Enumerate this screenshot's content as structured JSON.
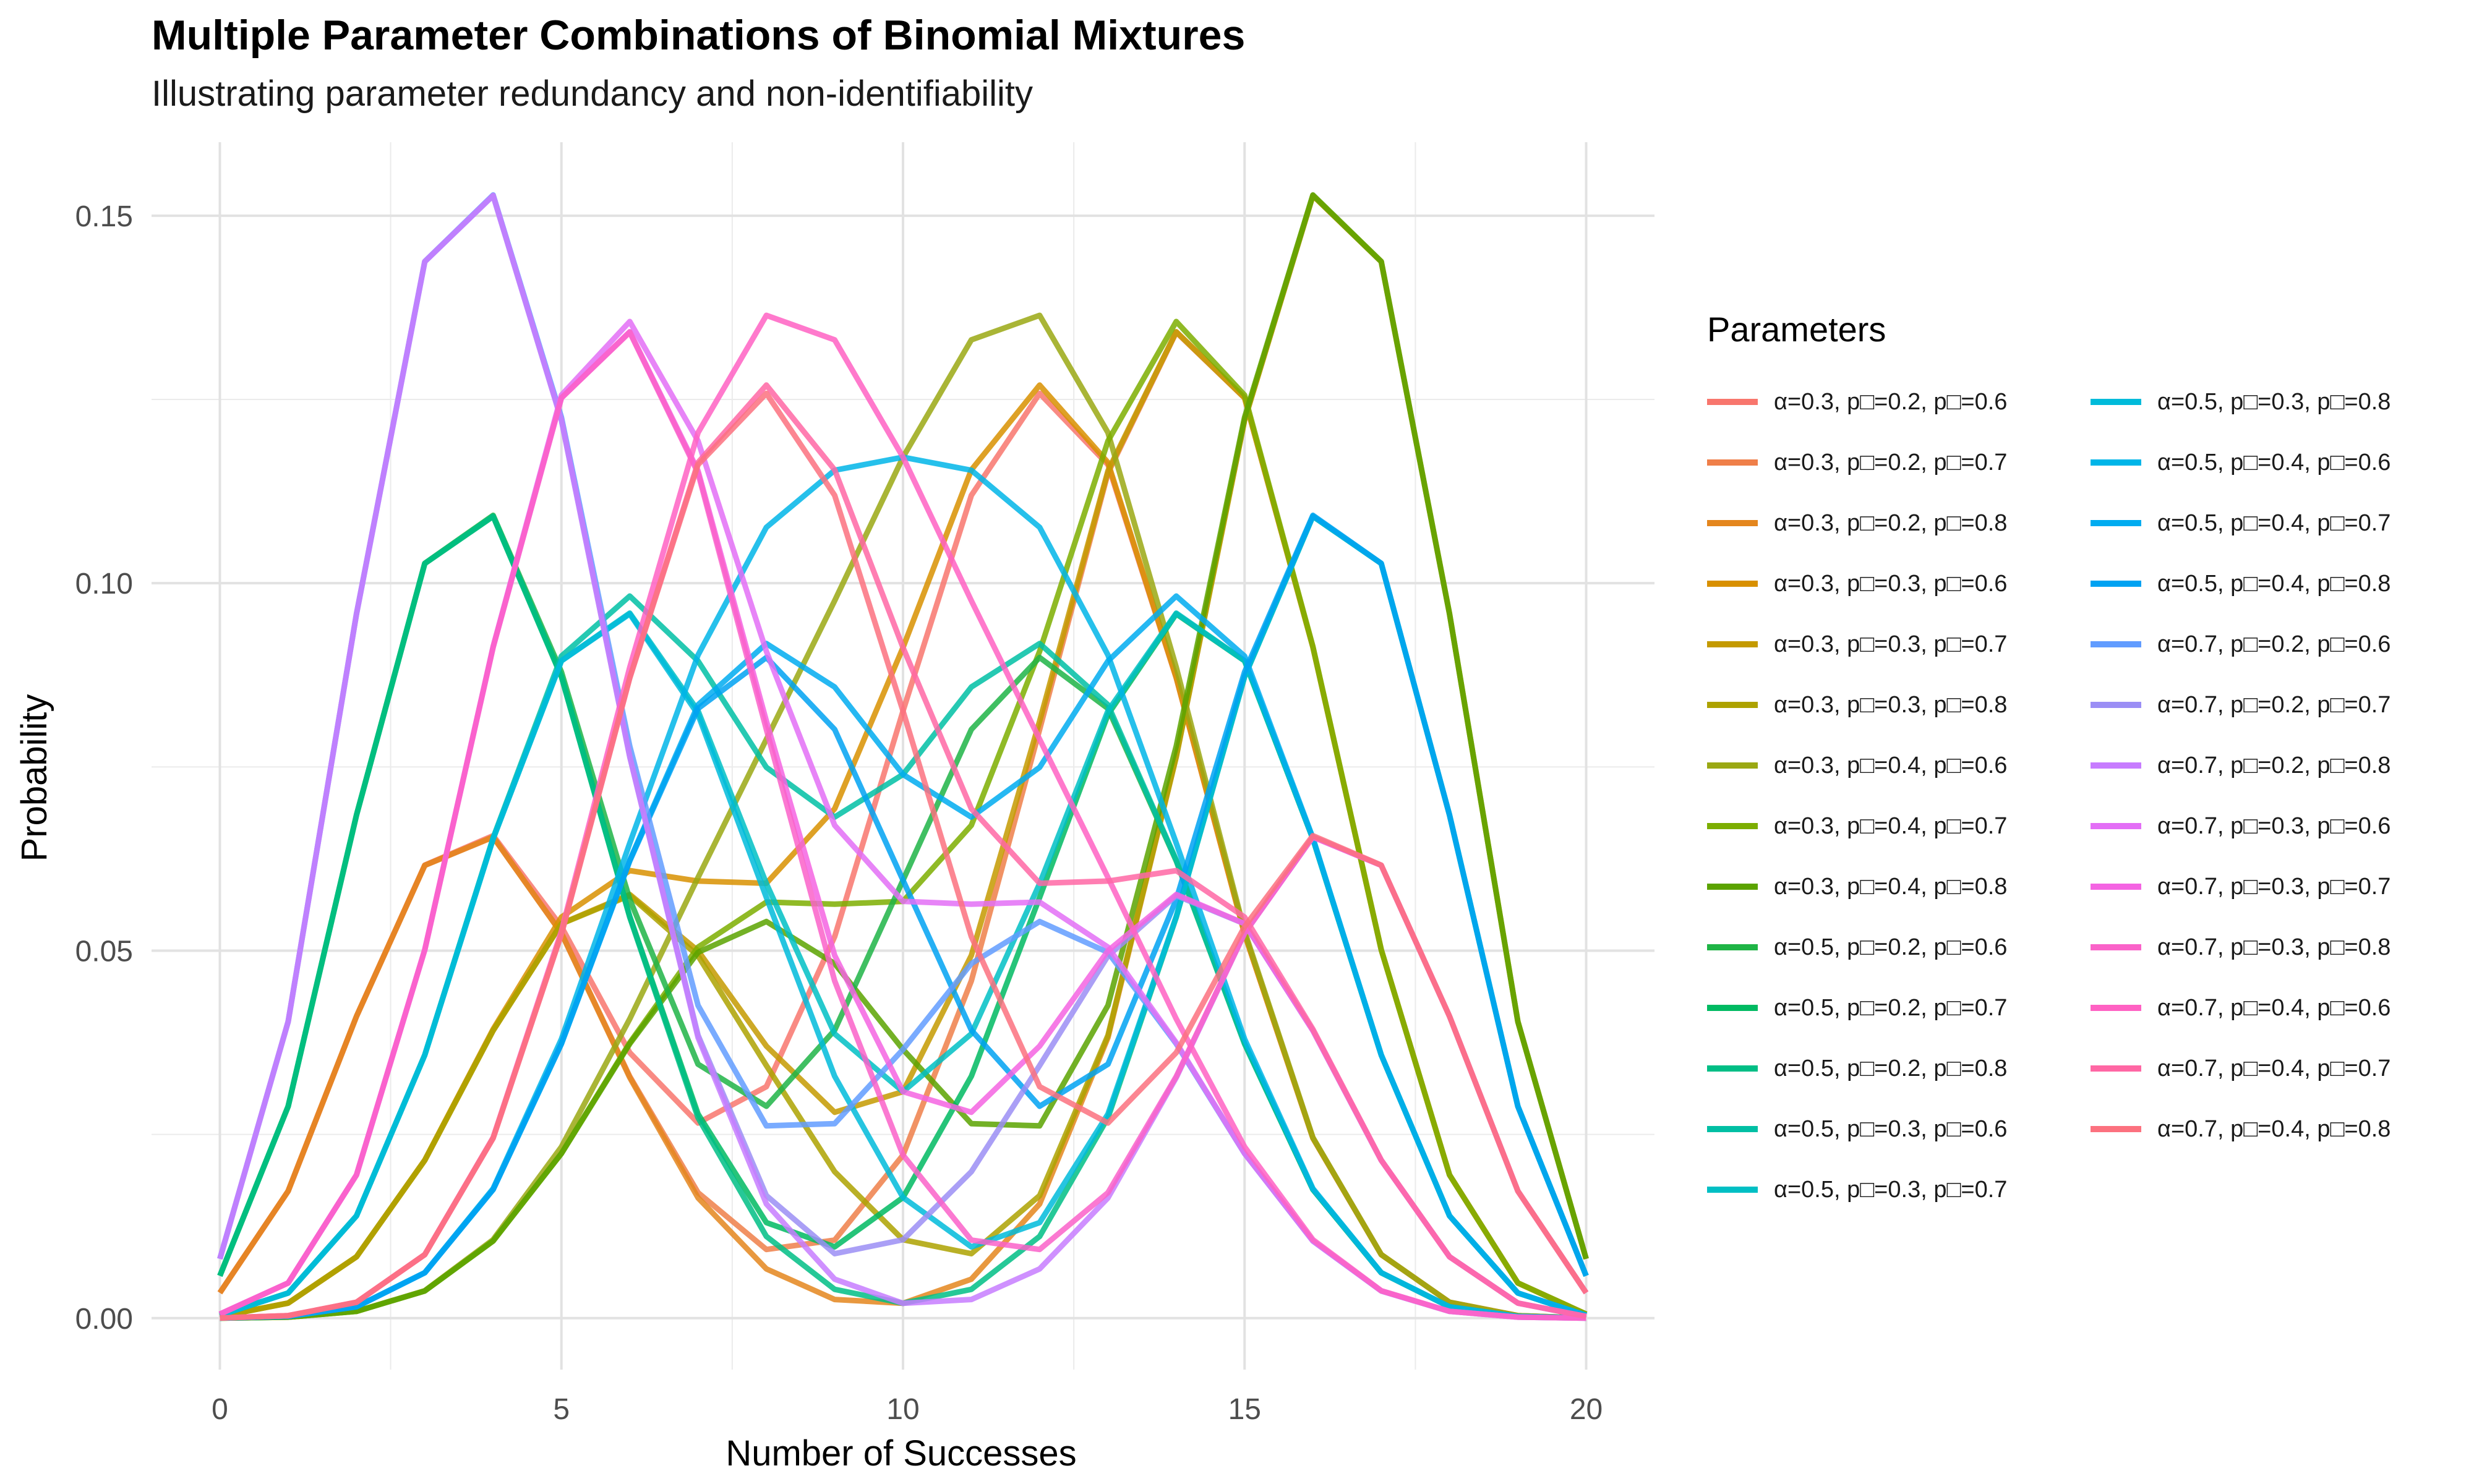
{
  "chart_data": {
    "type": "line",
    "title": "Multiple Parameter Combinations of Binomial Mixtures",
    "subtitle": "Illustrating parameter redundancy and non-identifiability",
    "xlabel": "Number of Successes",
    "ylabel": "Probability",
    "xlim": [
      -1,
      21
    ],
    "ylim": [
      -0.007,
      0.16
    ],
    "xticks": [
      0,
      5,
      10,
      15,
      20
    ],
    "yticks": [
      0.0,
      0.05,
      0.1,
      0.15
    ],
    "ytick_labels": [
      "0.00",
      "0.05",
      "0.10",
      "0.15"
    ],
    "grid": true,
    "legend_title": "Parameters",
    "legend_position": "right",
    "n": 20,
    "x": [
      0,
      1,
      2,
      3,
      4,
      5,
      6,
      7,
      8,
      9,
      10,
      11,
      12,
      13,
      14,
      15,
      16,
      17,
      18,
      19,
      20
    ],
    "series": [
      {
        "name": "α=0.3, p□=0.2, p□=0.6",
        "color": "#F8766D",
        "alpha": 0.3,
        "p1": 0.2,
        "p2": 0.6
      },
      {
        "name": "α=0.3, p□=0.2, p□=0.7",
        "color": "#EF7F49",
        "alpha": 0.3,
        "p1": 0.2,
        "p2": 0.7
      },
      {
        "name": "α=0.3, p□=0.2, p□=0.8",
        "color": "#E4861D",
        "alpha": 0.3,
        "p1": 0.2,
        "p2": 0.8
      },
      {
        "name": "α=0.3, p□=0.3, p□=0.6",
        "color": "#D89000",
        "alpha": 0.3,
        "p1": 0.3,
        "p2": 0.6
      },
      {
        "name": "α=0.3, p□=0.3, p□=0.7",
        "color": "#C49A00",
        "alpha": 0.3,
        "p1": 0.3,
        "p2": 0.7
      },
      {
        "name": "α=0.3, p□=0.3, p□=0.8",
        "color": "#ADA200",
        "alpha": 0.3,
        "p1": 0.3,
        "p2": 0.8
      },
      {
        "name": "α=0.3, p□=0.4, p□=0.6",
        "color": "#9AA813",
        "alpha": 0.3,
        "p1": 0.4,
        "p2": 0.6
      },
      {
        "name": "α=0.3, p□=0.4, p□=0.7",
        "color": "#7CAE00",
        "alpha": 0.3,
        "p1": 0.4,
        "p2": 0.7
      },
      {
        "name": "α=0.3, p□=0.4, p□=0.8",
        "color": "#5BA300",
        "alpha": 0.3,
        "p1": 0.4,
        "p2": 0.8
      },
      {
        "name": "α=0.5, p□=0.2, p□=0.6",
        "color": "#1FB446",
        "alpha": 0.5,
        "p1": 0.2,
        "p2": 0.6
      },
      {
        "name": "α=0.5, p□=0.2, p□=0.7",
        "color": "#00BA62",
        "alpha": 0.5,
        "p1": 0.2,
        "p2": 0.7
      },
      {
        "name": "α=0.5, p□=0.2, p□=0.8",
        "color": "#00BE85",
        "alpha": 0.5,
        "p1": 0.2,
        "p2": 0.8
      },
      {
        "name": "α=0.5, p□=0.3, p□=0.6",
        "color": "#00BFA4",
        "alpha": 0.5,
        "p1": 0.3,
        "p2": 0.6
      },
      {
        "name": "α=0.5, p□=0.3, p□=0.7",
        "color": "#00BFC4",
        "alpha": 0.5,
        "p1": 0.3,
        "p2": 0.7
      },
      {
        "name": "α=0.5, p□=0.3, p□=0.8",
        "color": "#00BBDA",
        "alpha": 0.5,
        "p1": 0.3,
        "p2": 0.8
      },
      {
        "name": "α=0.5, p□=0.4, p□=0.6",
        "color": "#00B5E8",
        "alpha": 0.5,
        "p1": 0.4,
        "p2": 0.6
      },
      {
        "name": "α=0.5, p□=0.4, p□=0.7",
        "color": "#00ACF0",
        "alpha": 0.5,
        "p1": 0.4,
        "p2": 0.7
      },
      {
        "name": "α=0.5, p□=0.4, p□=0.8",
        "color": "#00A2F2",
        "alpha": 0.5,
        "p1": 0.4,
        "p2": 0.8
      },
      {
        "name": "α=0.7, p□=0.2, p□=0.6",
        "color": "#619CFF",
        "alpha": 0.7,
        "p1": 0.2,
        "p2": 0.6
      },
      {
        "name": "α=0.7, p□=0.2, p□=0.7",
        "color": "#9B8EF5",
        "alpha": 0.7,
        "p1": 0.2,
        "p2": 0.7
      },
      {
        "name": "α=0.7, p□=0.2, p□=0.8",
        "color": "#C77CFF",
        "alpha": 0.7,
        "p1": 0.2,
        "p2": 0.8
      },
      {
        "name": "α=0.7, p□=0.3, p□=0.6",
        "color": "#E36EF6",
        "alpha": 0.7,
        "p1": 0.3,
        "p2": 0.6
      },
      {
        "name": "α=0.7, p□=0.3, p□=0.7",
        "color": "#F464E2",
        "alpha": 0.7,
        "p1": 0.3,
        "p2": 0.7
      },
      {
        "name": "α=0.7, p□=0.3, p□=0.8",
        "color": "#FA62C9",
        "alpha": 0.7,
        "p1": 0.3,
        "p2": 0.8
      },
      {
        "name": "α=0.7, p□=0.4, p□=0.6",
        "color": "#FF61C3",
        "alpha": 0.7,
        "p1": 0.4,
        "p2": 0.6
      },
      {
        "name": "α=0.7, p□=0.4, p□=0.7",
        "color": "#FF67A4",
        "alpha": 0.7,
        "p1": 0.4,
        "p2": 0.7
      },
      {
        "name": "α=0.7, p□=0.4, p□=0.8",
        "color": "#FC717F",
        "alpha": 0.7,
        "p1": 0.4,
        "p2": 0.8
      }
    ]
  }
}
